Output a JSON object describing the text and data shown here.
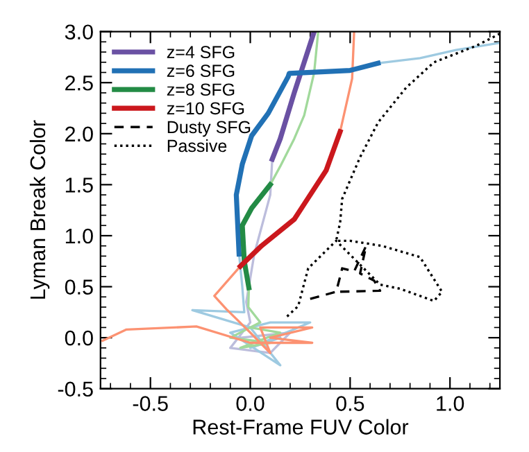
{
  "chart_data": {
    "type": "line",
    "xlabel": "Rest-Frame FUV Color",
    "ylabel": "Lyman Break Color",
    "xlim": [
      -0.75,
      1.25
    ],
    "ylim": [
      -0.5,
      3.0
    ],
    "xticks": [
      {
        "value": -0.5,
        "label": "-0.5"
      },
      {
        "value": 0,
        "label": "0.0"
      },
      {
        "value": 0.5,
        "label": "0.5"
      },
      {
        "value": 1.0,
        "label": "1.0"
      }
    ],
    "yticks": [
      {
        "value": -0.5,
        "label": "-0.5"
      },
      {
        "value": 0,
        "label": "0.0"
      },
      {
        "value": 0.5,
        "label": "0.5"
      },
      {
        "value": 1.0,
        "label": "1.0"
      },
      {
        "value": 1.5,
        "label": "1.5"
      },
      {
        "value": 2.0,
        "label": "2.0"
      },
      {
        "value": 2.5,
        "label": "2.5"
      },
      {
        "value": 3.0,
        "label": "3.0"
      }
    ],
    "grid": false,
    "legend": "top left",
    "line_style": "solid",
    "series": [
      {
        "color": "#bcbddc",
        "x": [
          0.11,
          0.1,
          0.02,
          -0.02,
          0.0,
          -0.1,
          0.1,
          0.2,
          -0.05
        ],
        "values": [
          1.75,
          1.4,
          0.82,
          0.35,
          0.15,
          -0.1,
          -0.15,
          0.05,
          0.0
        ]
      },
      {
        "color": "#9ecae1",
        "x": [
          -0.056,
          -0.04,
          -0.03,
          -0.29,
          0.0,
          0.15,
          -0.1,
          0.1,
          0.3,
          0.0,
          0.15
        ],
        "values": [
          0.82,
          0.5,
          0.25,
          0.27,
          0.1,
          -0.27,
          0.05,
          0.15,
          0.15,
          -0.1,
          0.0
        ]
      },
      {
        "color": "#9ecae1",
        "x": [
          0.64,
          0.85,
          1.03,
          1.25
        ],
        "values": [
          2.69,
          2.74,
          2.82,
          2.89
        ]
      },
      {
        "color": "#a1d99b",
        "x": [
          -0.007,
          -0.01,
          0.05,
          -0.1,
          0.1,
          -0.05,
          0.15,
          0.0
        ],
        "values": [
          0.49,
          0.3,
          0.15,
          0.0,
          -0.05,
          -0.1,
          0.05,
          0.1
        ]
      },
      {
        "color": "#a1d99b",
        "x": [
          0.1,
          0.15,
          0.22,
          0.27,
          0.32,
          0.34
        ],
        "values": [
          1.5,
          1.68,
          1.95,
          2.18,
          2.6,
          3.0
        ]
      },
      {
        "color": "#fc9272",
        "x": [
          -0.05,
          -0.18,
          -0.12,
          0.0,
          0.1,
          0.05,
          0.31,
          0.1,
          0.31,
          0.0,
          -0.27,
          -0.62,
          -0.74
        ],
        "values": [
          0.7,
          0.41,
          0.28,
          0.05,
          -0.15,
          0.1,
          0.1,
          0.0,
          -0.05,
          -0.05,
          0.11,
          0.08,
          -0.03
        ]
      },
      {
        "color": "#fc9272",
        "x": [
          0.45,
          0.51,
          0.52
        ],
        "values": [
          2.02,
          2.54,
          3.0
        ]
      },
      {
        "name": "z=4 SFG",
        "color": "#6a51a3",
        "x": [
          0.11,
          0.15,
          0.22,
          0.32
        ],
        "values": [
          1.75,
          1.95,
          2.4,
          3.0
        ]
      },
      {
        "name": "z=6 SFG",
        "color": "#2171b5",
        "x": [
          -0.056,
          -0.07,
          -0.04,
          0.007,
          0.09,
          0.19,
          0.195,
          0.5,
          0.64
        ],
        "values": [
          0.82,
          1.4,
          1.7,
          1.98,
          2.2,
          2.56,
          2.59,
          2.62,
          2.69
        ]
      },
      {
        "name": "z=8 SFG",
        "color": "#238b45",
        "x": [
          -0.007,
          -0.03,
          -0.04,
          0.007,
          0.1
        ],
        "values": [
          0.49,
          0.75,
          1.1,
          1.27,
          1.5
        ]
      },
      {
        "name": "z=10 SFG",
        "color": "#cb181d",
        "x": [
          -0.05,
          0.056,
          0.22,
          0.27,
          0.38,
          0.45
        ],
        "values": [
          0.7,
          0.9,
          1.16,
          1.31,
          1.64,
          2.02
        ]
      },
      {
        "name": "Dusty SFG",
        "color": "#000000",
        "line_style": "dashed",
        "x": [
          0.3,
          0.43,
          0.45,
          0.46,
          0.52,
          0.58,
          0.55,
          0.62,
          0.65,
          0.43
        ],
        "values": [
          0.38,
          0.45,
          0.6,
          0.68,
          0.65,
          0.9,
          0.63,
          0.56,
          0.46,
          0.45
        ]
      },
      {
        "name": "Passive",
        "color": "#000000",
        "line_style": "dotted",
        "x": [
          1.25,
          1.13,
          0.92,
          0.78,
          0.64,
          0.55,
          0.46,
          0.45,
          0.43,
          0.5,
          0.66,
          0.85,
          0.96,
          0.92,
          0.75,
          0.65,
          0.43,
          0.29,
          0.24,
          0.18
        ],
        "values": [
          2.98,
          2.86,
          2.7,
          2.45,
          2.11,
          1.77,
          1.36,
          1.13,
          0.95,
          0.95,
          0.9,
          0.79,
          0.45,
          0.36,
          0.48,
          0.52,
          0.95,
          0.68,
          0.31,
          0.2
        ]
      }
    ]
  }
}
